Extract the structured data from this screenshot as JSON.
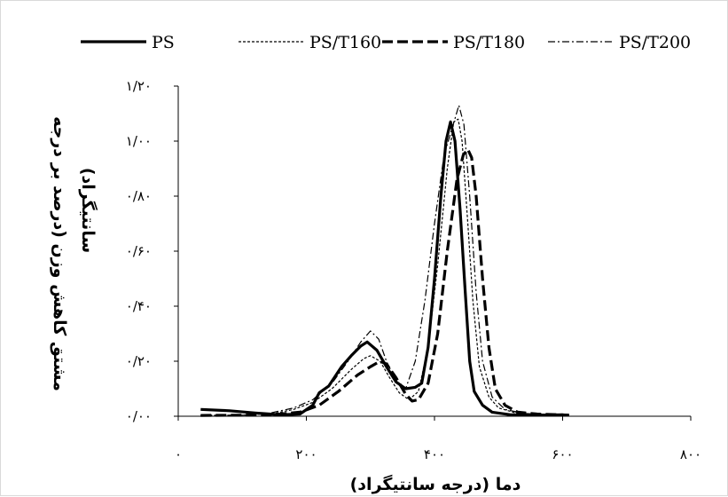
{
  "chart_data": {
    "type": "line",
    "title": "",
    "xlabel": "دما (درجه سانتیگراد)",
    "ylabel_lines": [
      "مشتق کاهش وزن (درصد بر درجه",
      "سانتیگراد)"
    ],
    "xlim": [
      0,
      800
    ],
    "ylim": [
      0,
      1.2
    ],
    "x_ticks": [
      {
        "value": 0,
        "label": "۰"
      },
      {
        "value": 200,
        "label": "۲۰۰"
      },
      {
        "value": 400,
        "label": "۴۰۰"
      },
      {
        "value": 600,
        "label": "۶۰۰"
      },
      {
        "value": 800,
        "label": "۸۰۰"
      }
    ],
    "y_ticks": [
      {
        "value": 0,
        "label": "۰/۰۰"
      },
      {
        "value": 0.2,
        "label": "۰/۲۰"
      },
      {
        "value": 0.4,
        "label": "۰/۴۰"
      },
      {
        "value": 0.6,
        "label": "۰/۶۰"
      },
      {
        "value": 0.8,
        "label": "۰/۸۰"
      },
      {
        "value": 1.0,
        "label": "۱/۰۰"
      },
      {
        "value": 1.2,
        "label": "۱/۲۰"
      }
    ],
    "grid": false,
    "legend_position": "top",
    "series": [
      {
        "name": "PS",
        "style": "solid",
        "width": 3.2,
        "color": "#000000",
        "points": [
          [
            35,
            0.025
          ],
          [
            80,
            0.02
          ],
          [
            120,
            0.012
          ],
          [
            160,
            0.005
          ],
          [
            190,
            0.008
          ],
          [
            210,
            0.04
          ],
          [
            220,
            0.085
          ],
          [
            235,
            0.11
          ],
          [
            255,
            0.18
          ],
          [
            270,
            0.22
          ],
          [
            285,
            0.255
          ],
          [
            295,
            0.27
          ],
          [
            310,
            0.24
          ],
          [
            325,
            0.18
          ],
          [
            340,
            0.125
          ],
          [
            355,
            0.1
          ],
          [
            370,
            0.105
          ],
          [
            380,
            0.12
          ],
          [
            390,
            0.25
          ],
          [
            400,
            0.5
          ],
          [
            410,
            0.8
          ],
          [
            418,
            1.0
          ],
          [
            425,
            1.07
          ],
          [
            432,
            1.0
          ],
          [
            440,
            0.75
          ],
          [
            448,
            0.45
          ],
          [
            455,
            0.2
          ],
          [
            462,
            0.09
          ],
          [
            475,
            0.04
          ],
          [
            490,
            0.015
          ],
          [
            520,
            0.005
          ],
          [
            560,
            0.004
          ],
          [
            600,
            0.005
          ],
          [
            610,
            0.004
          ]
        ]
      },
      {
        "name": "PS/T160",
        "style": "dashed-fine",
        "width": 1.2,
        "color": "#000000",
        "points": [
          [
            35,
            0.003
          ],
          [
            100,
            0.004
          ],
          [
            150,
            0.01
          ],
          [
            180,
            0.025
          ],
          [
            210,
            0.05
          ],
          [
            240,
            0.1
          ],
          [
            270,
            0.17
          ],
          [
            290,
            0.21
          ],
          [
            300,
            0.22
          ],
          [
            315,
            0.2
          ],
          [
            330,
            0.14
          ],
          [
            345,
            0.085
          ],
          [
            360,
            0.06
          ],
          [
            375,
            0.09
          ],
          [
            390,
            0.25
          ],
          [
            405,
            0.55
          ],
          [
            420,
            0.9
          ],
          [
            430,
            1.07
          ],
          [
            437,
            1.08
          ],
          [
            443,
            1.0
          ],
          [
            452,
            0.7
          ],
          [
            460,
            0.42
          ],
          [
            470,
            0.18
          ],
          [
            485,
            0.07
          ],
          [
            500,
            0.03
          ],
          [
            530,
            0.01
          ],
          [
            570,
            0.006
          ],
          [
            610,
            0.005
          ]
        ]
      },
      {
        "name": "PS/T180",
        "style": "dashed-bold",
        "width": 3.2,
        "color": "#000000",
        "points": [
          [
            35,
            0.003
          ],
          [
            100,
            0.004
          ],
          [
            150,
            0.006
          ],
          [
            190,
            0.015
          ],
          [
            220,
            0.04
          ],
          [
            250,
            0.09
          ],
          [
            280,
            0.15
          ],
          [
            300,
            0.18
          ],
          [
            315,
            0.2
          ],
          [
            325,
            0.19
          ],
          [
            340,
            0.14
          ],
          [
            355,
            0.08
          ],
          [
            365,
            0.055
          ],
          [
            375,
            0.06
          ],
          [
            390,
            0.12
          ],
          [
            405,
            0.3
          ],
          [
            420,
            0.6
          ],
          [
            435,
            0.86
          ],
          [
            445,
            0.95
          ],
          [
            452,
            0.97
          ],
          [
            458,
            0.94
          ],
          [
            465,
            0.8
          ],
          [
            475,
            0.5
          ],
          [
            485,
            0.25
          ],
          [
            495,
            0.1
          ],
          [
            510,
            0.04
          ],
          [
            530,
            0.015
          ],
          [
            560,
            0.008
          ],
          [
            610,
            0.004
          ]
        ]
      },
      {
        "name": "PS/T200",
        "style": "dashdot",
        "width": 1.2,
        "color": "#000000",
        "points": [
          [
            35,
            0.003
          ],
          [
            100,
            0.004
          ],
          [
            140,
            0.01
          ],
          [
            180,
            0.03
          ],
          [
            210,
            0.06
          ],
          [
            240,
            0.12
          ],
          [
            265,
            0.2
          ],
          [
            285,
            0.27
          ],
          [
            300,
            0.31
          ],
          [
            313,
            0.28
          ],
          [
            325,
            0.2
          ],
          [
            340,
            0.13
          ],
          [
            355,
            0.1
          ],
          [
            370,
            0.2
          ],
          [
            385,
            0.42
          ],
          [
            400,
            0.7
          ],
          [
            415,
            0.95
          ],
          [
            428,
            1.05
          ],
          [
            438,
            1.13
          ],
          [
            446,
            1.06
          ],
          [
            455,
            0.8
          ],
          [
            465,
            0.45
          ],
          [
            475,
            0.2
          ],
          [
            490,
            0.07
          ],
          [
            510,
            0.025
          ],
          [
            540,
            0.01
          ],
          [
            580,
            0.006
          ],
          [
            610,
            0.004
          ]
        ]
      }
    ]
  }
}
